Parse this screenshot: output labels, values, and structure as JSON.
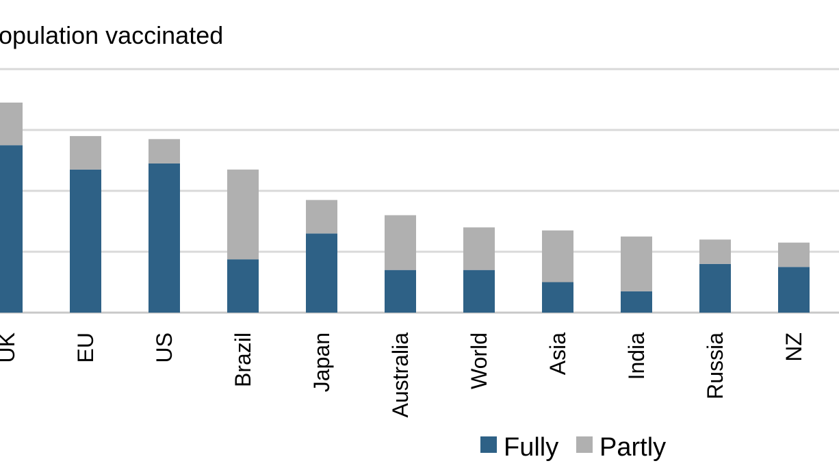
{
  "chart_data": {
    "type": "bar",
    "stacked": true,
    "title": "opulation vaccinated",
    "xlabel": "",
    "ylabel": "",
    "ylim": [
      0,
      80
    ],
    "grid": true,
    "legend_position": "bottom-right",
    "categories": [
      "UK",
      "EU",
      "US",
      "Brazil",
      "Japan",
      "Australia",
      "World",
      "Asia",
      "India",
      "Russia",
      "NZ"
    ],
    "series": [
      {
        "name": "Fully",
        "color": "#2e6186",
        "values": [
          55,
          47,
          49,
          17.5,
          26,
          14,
          14,
          10,
          7,
          16,
          15
        ]
      },
      {
        "name": "Partly",
        "color": "#b0b0b0",
        "values": [
          14,
          11,
          8,
          29.5,
          11,
          18,
          14,
          17,
          18,
          8,
          8
        ]
      }
    ]
  }
}
